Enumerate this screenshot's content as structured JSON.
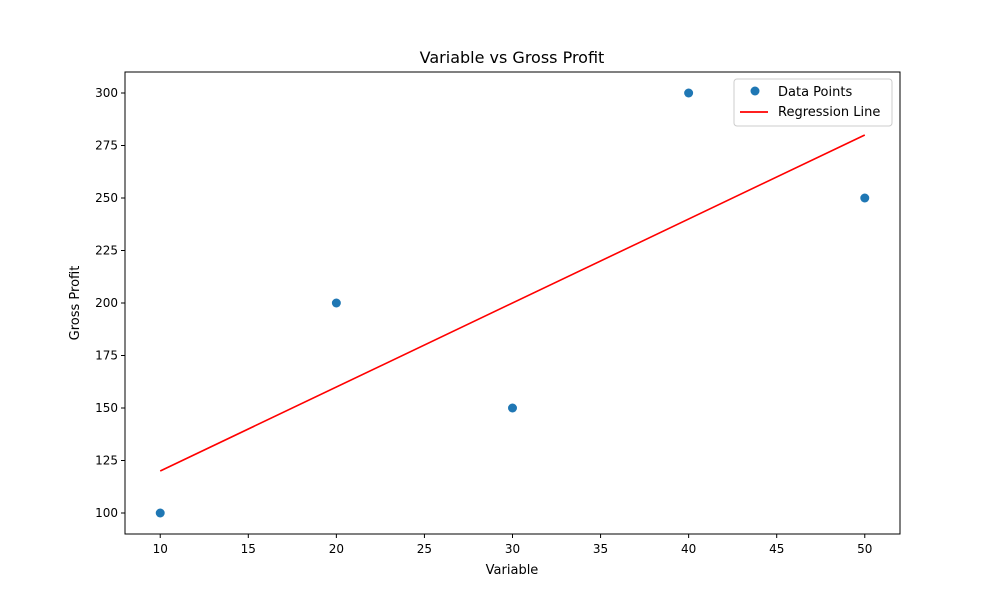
{
  "chart_data": {
    "type": "scatter",
    "title": "Variable vs Gross Profit",
    "xlabel": "Variable",
    "ylabel": "Gross Profit",
    "xlim": [
      8,
      52
    ],
    "ylim": [
      90,
      310
    ],
    "xticks": [
      10,
      15,
      20,
      25,
      30,
      35,
      40,
      45,
      50
    ],
    "yticks": [
      100,
      125,
      150,
      175,
      200,
      225,
      250,
      275,
      300
    ],
    "grid": false,
    "legend_position": "top-right",
    "series": [
      {
        "name": "Data Points",
        "type": "scatter",
        "color": "#1f77b4",
        "x": [
          10,
          20,
          30,
          40,
          50
        ],
        "y": [
          100,
          200,
          150,
          300,
          250
        ]
      },
      {
        "name": "Regression Line",
        "type": "line",
        "color": "#ff0000",
        "x": [
          10,
          50
        ],
        "y": [
          120,
          280
        ]
      }
    ]
  }
}
